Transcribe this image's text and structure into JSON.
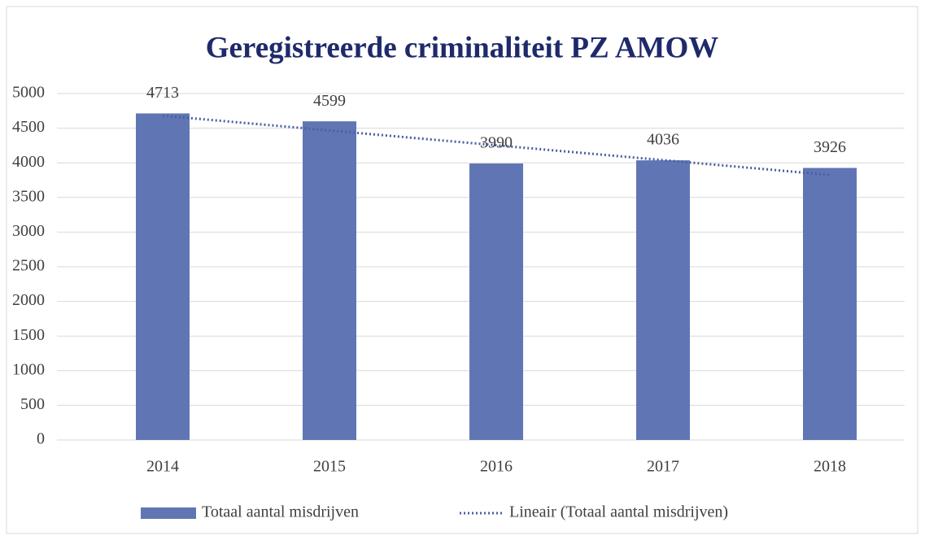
{
  "chart_data": {
    "type": "bar",
    "title": "Geregistreerde criminaliteit PZ AMOW",
    "categories": [
      "2014",
      "2015",
      "2016",
      "2017",
      "2018"
    ],
    "series": [
      {
        "name": "Totaal aantal misdrijven",
        "color": "#6076b4",
        "values": [
          4713,
          4599,
          3990,
          4036,
          3926
        ]
      },
      {
        "name": "Lineair (Totaal aantal misdrijven)",
        "type": "line",
        "style": "dotted",
        "color": "#4a5fa0",
        "values": [
          4680,
          4467,
          4253,
          4039,
          3825
        ]
      }
    ],
    "ylim": [
      0,
      5000
    ],
    "yticks": [
      0,
      500,
      1000,
      1500,
      2000,
      2500,
      3000,
      3500,
      4000,
      4500,
      5000
    ],
    "grid": true,
    "legend": "bottom"
  }
}
